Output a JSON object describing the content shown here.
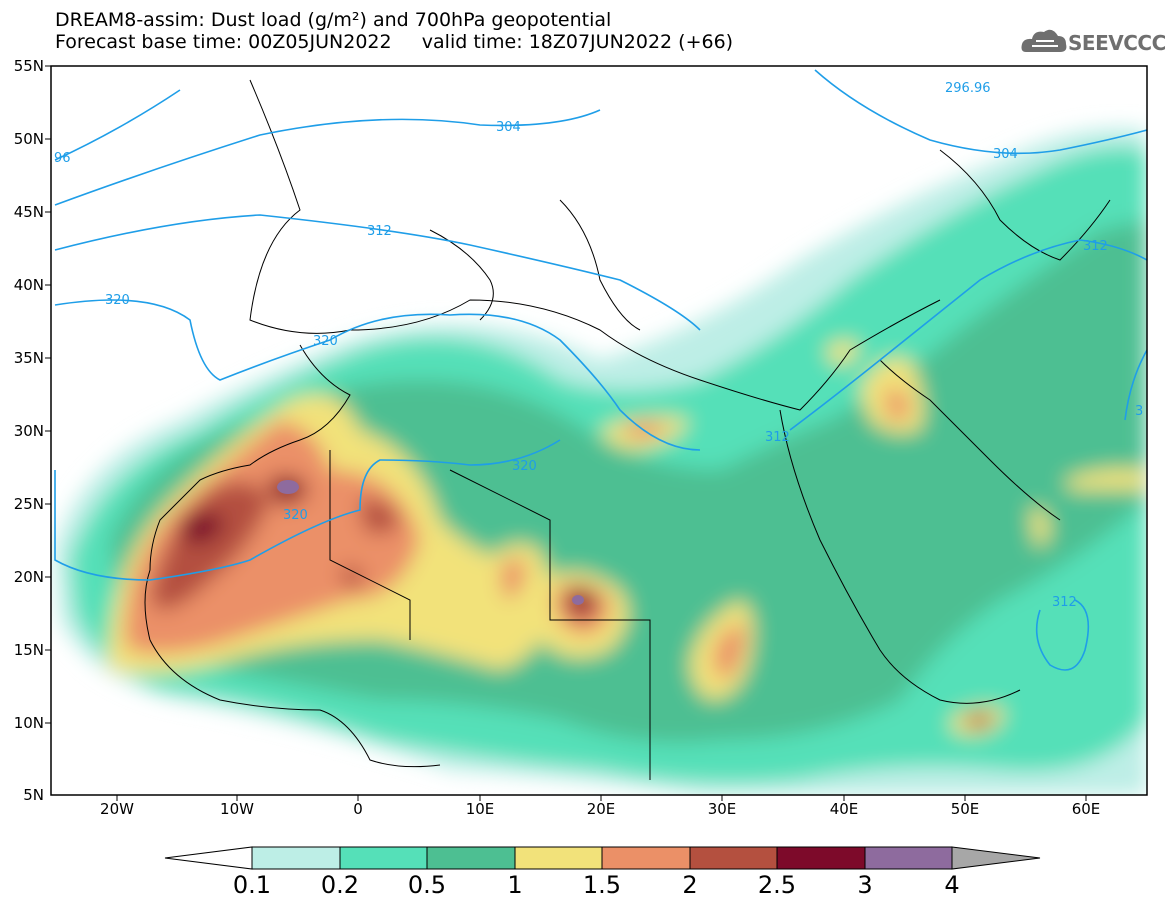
{
  "title": {
    "line1": "DREAM8-assim: Dust load (g/m²) and 700hPa geopotential",
    "line2": "Forecast base time: 00Z05JUN2022     valid time: 18Z07JUN2022 (+66)"
  },
  "logo": {
    "text": "SEEVCCC",
    "icon": "cloud-icon"
  },
  "axes": {
    "lat_labels": [
      "55N",
      "50N",
      "45N",
      "40N",
      "35N",
      "30N",
      "25N",
      "20N",
      "15N",
      "10N",
      "5N"
    ],
    "lon_labels": [
      "20W",
      "10W",
      "0",
      "10E",
      "20E",
      "30E",
      "40E",
      "50E",
      "60E"
    ]
  },
  "contour_labels": [
    "296.96",
    "304",
    "312",
    "320",
    "320",
    "320",
    "320",
    "312",
    "304",
    "312",
    "312",
    "96",
    "3"
  ],
  "colorbar": {
    "ticks": [
      "0.1",
      "0.2",
      "0.5",
      "1",
      "1.5",
      "2",
      "2.5",
      "3",
      "4"
    ],
    "colors": [
      "#bdeee6",
      "#55e0b8",
      "#4dbf92",
      "#f2e27a",
      "#eb9067",
      "#b4503f",
      "#7d0a2a",
      "#8e6b9e"
    ]
  },
  "colors": {
    "ocean": "#ffffff",
    "contour": "#1f9ee8",
    "coast": "#000000"
  }
}
